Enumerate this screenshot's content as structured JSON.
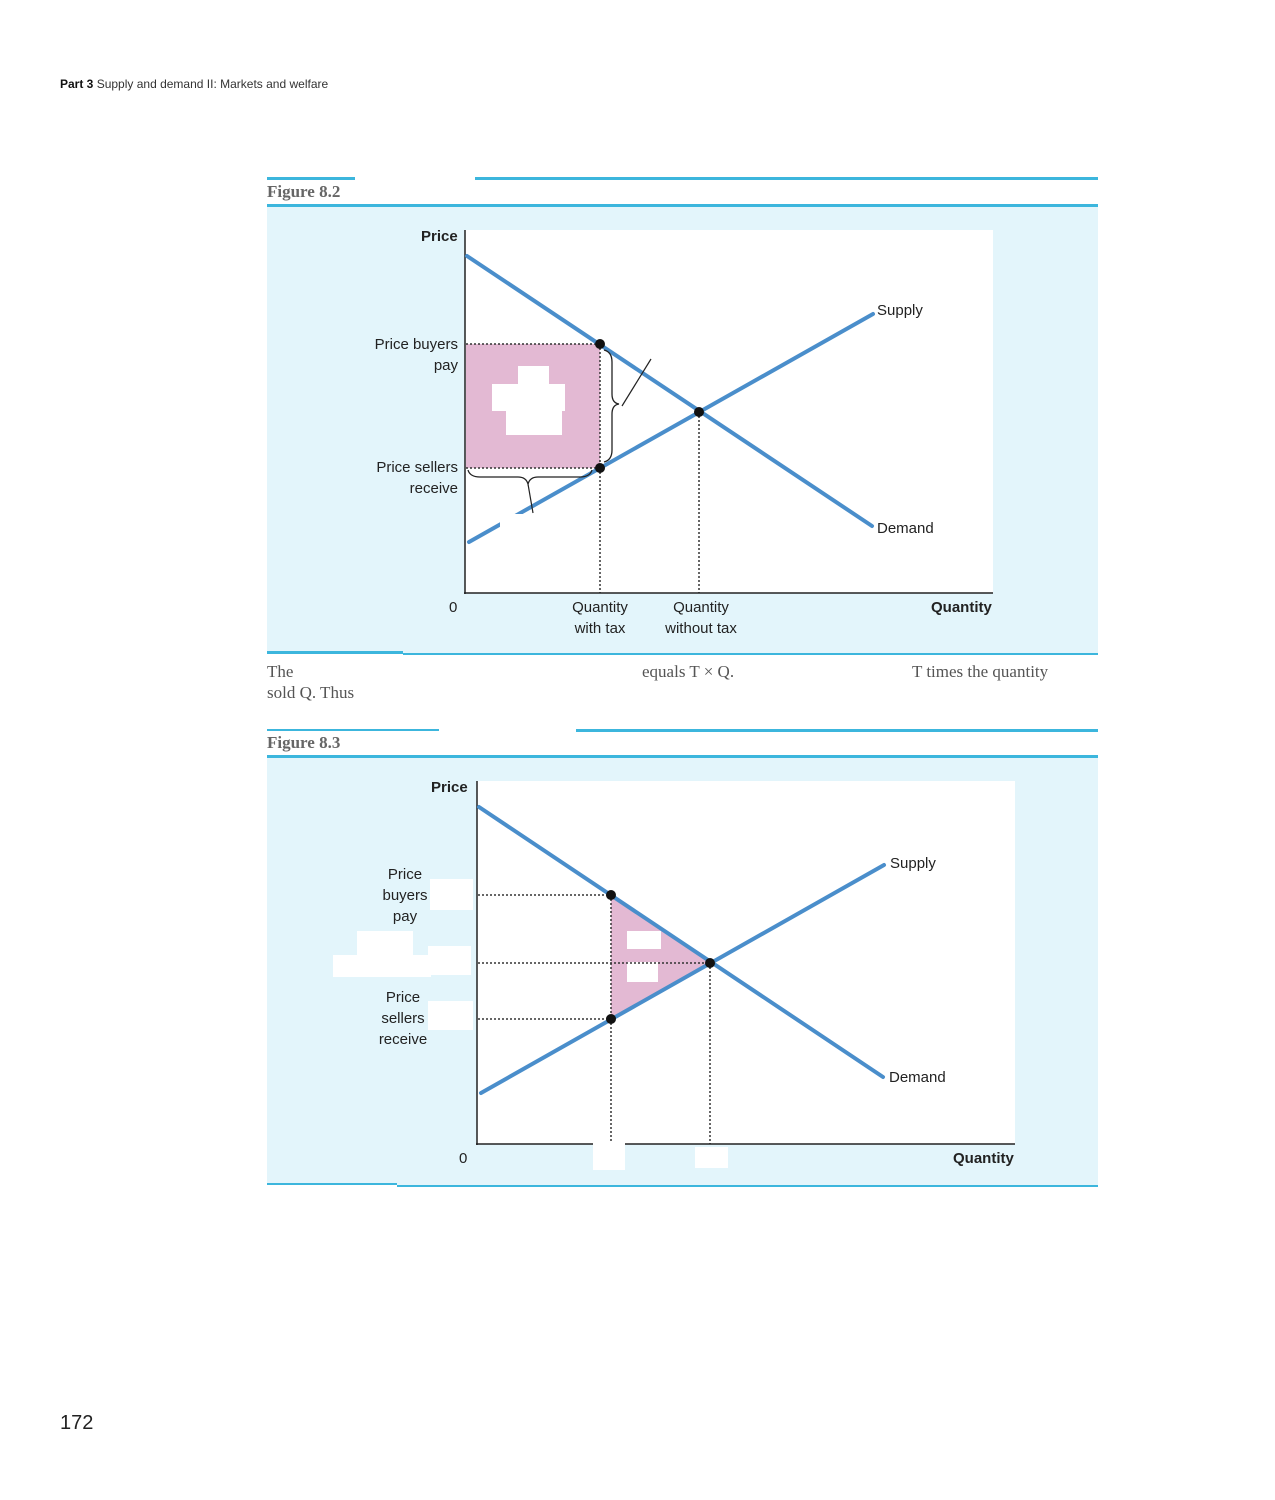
{
  "running_head": {
    "part": "Part 3",
    "title": "Supply and demand II: Markets and welfare"
  },
  "page_number": "172",
  "figure_a": {
    "label": "Figure 8.2",
    "y_axis_label": "Price",
    "x_axis_label": "Quantity",
    "origin_label": "0",
    "price_buyers_pay": [
      "Price buyers",
      "pay"
    ],
    "price_sellers_receive": [
      "Price sellers",
      "receive"
    ],
    "quantity_with_tax": [
      "Quantity",
      "with tax"
    ],
    "quantity_without_tax": [
      "Quantity",
      "without tax"
    ],
    "supply_label": "Supply",
    "demand_label": "Demand",
    "caption_line1": {
      "start": "The",
      "middle": "equals T × Q.",
      "end": "T times the quantity"
    },
    "caption_line2": "sold Q. Thus"
  },
  "figure_b": {
    "label": "Figure 8.3",
    "y_axis_label": "Price",
    "x_axis_label": "Quantity",
    "origin_label": "0",
    "price_buyers_pay": [
      "Price",
      "buyers",
      "pay"
    ],
    "price_sellers_receive": [
      "Price",
      "sellers",
      "receive"
    ],
    "supply_label": "Supply",
    "demand_label": "Demand"
  },
  "colors": {
    "curve": "#4a8ecb",
    "shaded_area": "#e3b9d3",
    "panel_background": "#e3f5fb",
    "rule": "#3cb6dd"
  }
}
